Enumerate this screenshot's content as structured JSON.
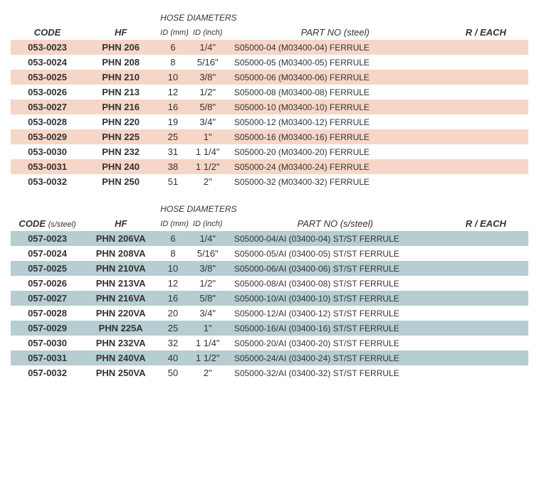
{
  "tables": [
    {
      "stripe_color": "#f6d6c7",
      "headers": {
        "super": "HOSE DIAMETERS",
        "code": "CODE",
        "code_sub": "",
        "hf": "HF",
        "id_mm": "ID (mm)",
        "id_inch": "ID (inch)",
        "part": "PART NO (steel)",
        "reach": "R / EACH"
      },
      "rows": [
        {
          "code": "053-0023",
          "hf": "PHN 206",
          "id_mm": "6",
          "id_inch": "1/4\"",
          "part": "S05000-04 (M03400-04) FERRULE",
          "reach": ""
        },
        {
          "code": "053-0024",
          "hf": "PHN 208",
          "id_mm": "8",
          "id_inch": "5/16\"",
          "part": "S05000-05 (M03400-05) FERRULE",
          "reach": ""
        },
        {
          "code": "053-0025",
          "hf": "PHN 210",
          "id_mm": "10",
          "id_inch": "3/8\"",
          "part": "S05000-06 (M03400-06) FERRULE",
          "reach": ""
        },
        {
          "code": "053-0026",
          "hf": "PHN 213",
          "id_mm": "12",
          "id_inch": "1/2\"",
          "part": "S05000-08 (M03400-08) FERRULE",
          "reach": ""
        },
        {
          "code": "053-0027",
          "hf": "PHN 216",
          "id_mm": "16",
          "id_inch": "5/8\"",
          "part": "S05000-10 (M03400-10) FERRULE",
          "reach": ""
        },
        {
          "code": "053-0028",
          "hf": "PHN 220",
          "id_mm": "19",
          "id_inch": "3/4\"",
          "part": "S05000-12 (M03400-12) FERRULE",
          "reach": ""
        },
        {
          "code": "053-0029",
          "hf": "PHN 225",
          "id_mm": "25",
          "id_inch": "1\"",
          "part": "S05000-16 (M03400-16) FERRULE",
          "reach": ""
        },
        {
          "code": "053-0030",
          "hf": "PHN 232",
          "id_mm": "31",
          "id_inch": "1 1/4\"",
          "part": "S05000-20 (M03400-20) FERRULE",
          "reach": ""
        },
        {
          "code": "053-0031",
          "hf": "PHN 240",
          "id_mm": "38",
          "id_inch": "1 1/2\"",
          "part": "S05000-24 (M03400-24) FERRULE",
          "reach": ""
        },
        {
          "code": "053-0032",
          "hf": "PHN 250",
          "id_mm": "51",
          "id_inch": "2\"",
          "part": "S05000-32 (M03400-32) FERRULE",
          "reach": ""
        }
      ]
    },
    {
      "stripe_color": "#b6cdd1",
      "headers": {
        "super": "HOSE DIAMETERS",
        "code": "CODE",
        "code_sub": "(s/steel)",
        "hf": "HF",
        "id_mm": "ID (mm)",
        "id_inch": "ID (inch)",
        "part": "PART NO (s/steel)",
        "reach": "R / EACH"
      },
      "rows": [
        {
          "code": "057-0023",
          "hf": "PHN 206VA",
          "id_mm": "6",
          "id_inch": "1/4\"",
          "part": "S05000-04/AI (03400-04) ST/ST FERRULE",
          "reach": ""
        },
        {
          "code": "057-0024",
          "hf": "PHN 208VA",
          "id_mm": "8",
          "id_inch": "5/16\"",
          "part": "S05000-05/AI (03400-05) ST/ST FERRULE",
          "reach": ""
        },
        {
          "code": "057-0025",
          "hf": "PHN 210VA",
          "id_mm": "10",
          "id_inch": "3/8\"",
          "part": "S05000-06/AI (03400-06) ST/ST FERRULE",
          "reach": ""
        },
        {
          "code": "057-0026",
          "hf": "PHN 213VA",
          "id_mm": "12",
          "id_inch": "1/2\"",
          "part": "S05000-08/AI (03400-08) ST/ST FERRULE",
          "reach": ""
        },
        {
          "code": "057-0027",
          "hf": "PHN 216VA",
          "id_mm": "16",
          "id_inch": "5/8\"",
          "part": "S05000-10/AI (03400-10) ST/ST FERRULE",
          "reach": ""
        },
        {
          "code": "057-0028",
          "hf": "PHN 220VA",
          "id_mm": "20",
          "id_inch": "3/4\"",
          "part": "S05000-12/AI (03400-12) ST/ST FERRULE",
          "reach": ""
        },
        {
          "code": "057-0029",
          "hf": "PHN 225A",
          "id_mm": "25",
          "id_inch": "1\"",
          "part": "S05000-16/AI (03400-16) ST/ST FERRULE",
          "reach": ""
        },
        {
          "code": "057-0030",
          "hf": "PHN 232VA",
          "id_mm": "32",
          "id_inch": "1 1/4\"",
          "part": "S05000-20/AI (03400-20) ST/ST FERRULE",
          "reach": ""
        },
        {
          "code": "057-0031",
          "hf": "PHN 240VA",
          "id_mm": "40",
          "id_inch": "1 1/2\"",
          "part": "S05000-24/AI (03400-24) ST/ST FERRULE",
          "reach": ""
        },
        {
          "code": "057-0032",
          "hf": "PHN 250VA",
          "id_mm": "50",
          "id_inch": "2\"",
          "part": "S05000-32/AI (03400-32) ST/ST FERRULE",
          "reach": ""
        }
      ]
    }
  ]
}
